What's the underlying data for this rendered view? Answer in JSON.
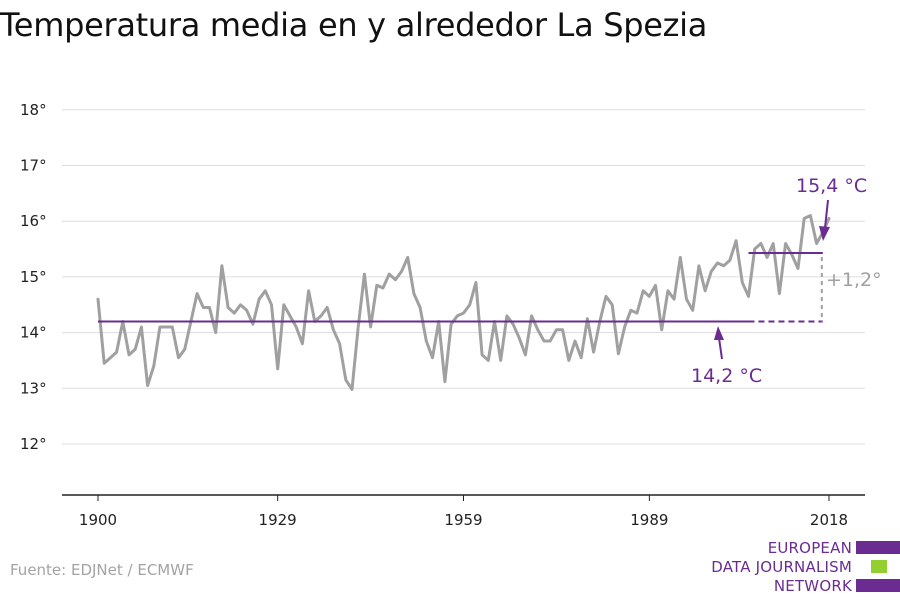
{
  "title": "Temperatura media en y alrededor La Spezia",
  "source": "Fuente: EDJNet / ECMWF",
  "logo": {
    "lines": [
      "EUROPEAN",
      "DATA JOURNALISM",
      "NETWORK"
    ],
    "colors": [
      "#6b2c91",
      "#93d02f",
      "#6b2c91"
    ]
  },
  "colors": {
    "series": "#a0a0a0",
    "baseline": "#6b2c91",
    "recent": "#6b2c91",
    "difference": "#a0a0a0",
    "grid": "#dddddd",
    "axis": "#222222"
  },
  "chart_data": {
    "type": "line",
    "title": "Temperatura media en y alrededor La Spezia",
    "xlabel": "",
    "ylabel": "",
    "xlim": [
      1900,
      2018
    ],
    "ylim": [
      11,
      18
    ],
    "x_ticks": [
      1900,
      1929,
      1959,
      1989,
      2018
    ],
    "x_tick_labels": [
      "1900",
      "1929",
      "1959",
      "1989",
      "2018"
    ],
    "y_ticks": [
      12,
      13,
      14,
      15,
      16,
      17,
      18
    ],
    "y_tick_labels": [
      "12°",
      "13°",
      "14°",
      "15°",
      "16°",
      "17°",
      "18°"
    ],
    "grid": true,
    "series": [
      {
        "x": [
          1900,
          1901,
          1902,
          1903,
          1904,
          1905,
          1906,
          1907,
          1908,
          1909,
          1910,
          1911,
          1912,
          1913,
          1914,
          1915,
          1916,
          1917,
          1918,
          1919,
          1920,
          1921,
          1922,
          1923,
          1924,
          1925,
          1926,
          1927,
          1928,
          1929,
          1930,
          1931,
          1932,
          1933,
          1934,
          1935,
          1936,
          1937,
          1938,
          1939,
          1940,
          1941,
          1942,
          1943,
          1944,
          1945,
          1946,
          1947,
          1948,
          1949,
          1950,
          1951,
          1952,
          1953,
          1954,
          1955,
          1956,
          1957,
          1958,
          1959,
          1960,
          1961,
          1962,
          1963,
          1964,
          1965,
          1966,
          1967,
          1968,
          1969,
          1970,
          1971,
          1972,
          1973,
          1974,
          1975,
          1976,
          1977,
          1978,
          1979,
          1980,
          1981,
          1982,
          1983,
          1984,
          1985,
          1986,
          1987,
          1988,
          1989,
          1990,
          1991,
          1992,
          1993,
          1994,
          1995,
          1996,
          1997,
          1998,
          1999,
          2000,
          2001,
          2002,
          2003,
          2004,
          2005,
          2006,
          2007,
          2008,
          2009,
          2010,
          2011,
          2012,
          2013,
          2014,
          2015,
          2016,
          2017,
          2018
        ],
        "values": [
          14.6,
          13.45,
          13.55,
          13.65,
          14.2,
          13.6,
          13.7,
          14.1,
          13.05,
          13.4,
          14.1,
          14.1,
          14.1,
          13.55,
          13.7,
          14.2,
          14.7,
          14.45,
          14.45,
          14.0,
          15.2,
          14.45,
          14.35,
          14.5,
          14.4,
          14.15,
          14.6,
          14.75,
          14.5,
          13.35,
          14.5,
          14.3,
          14.1,
          13.8,
          14.75,
          14.2,
          14.3,
          14.45,
          14.05,
          13.8,
          13.15,
          12.98,
          14.1,
          15.05,
          14.1,
          14.85,
          14.8,
          15.05,
          14.95,
          15.1,
          15.35,
          14.7,
          14.45,
          13.85,
          13.55,
          14.2,
          13.12,
          14.15,
          14.3,
          14.35,
          14.5,
          14.9,
          13.6,
          13.5,
          14.2,
          13.5,
          14.3,
          14.15,
          13.9,
          13.6,
          14.3,
          14.05,
          13.85,
          13.85,
          14.05,
          14.05,
          13.5,
          13.85,
          13.55,
          14.25,
          13.65,
          14.2,
          14.65,
          14.5,
          13.62,
          14.1,
          14.4,
          14.35,
          14.75,
          14.65,
          14.85,
          14.05,
          14.75,
          14.6,
          15.35,
          14.6,
          14.4,
          15.2,
          14.75,
          15.1,
          15.25,
          15.2,
          15.3,
          15.65,
          14.9,
          14.65,
          15.5,
          15.6,
          15.35,
          15.6,
          14.7,
          15.6,
          15.4,
          15.15,
          16.05,
          16.1,
          15.6,
          15.8,
          16.05
        ]
      }
    ],
    "reference_lines": [
      {
        "label": "14,2 °C",
        "value": 14.2,
        "x_start": 1900,
        "x_end": 2005,
        "dashed_to": 2017
      },
      {
        "label": "15,4 °C",
        "value": 15.43,
        "x_start": 2005,
        "x_end": 2017
      }
    ],
    "annotations": [
      {
        "text": "14,2 °C"
      },
      {
        "text": "15,4 °C"
      },
      {
        "text": "+1,2°"
      }
    ]
  }
}
